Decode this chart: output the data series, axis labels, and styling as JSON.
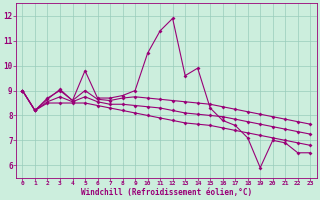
{
  "xlabel": "Windchill (Refroidissement éolien,°C)",
  "bg_color": "#cceedd",
  "line_color": "#990077",
  "grid_color": "#99ccbb",
  "xlim": [
    -0.5,
    23.5
  ],
  "ylim": [
    5.5,
    12.5
  ],
  "xticks": [
    0,
    1,
    2,
    3,
    4,
    5,
    6,
    7,
    8,
    9,
    10,
    11,
    12,
    13,
    14,
    15,
    16,
    17,
    18,
    19,
    20,
    21,
    22,
    23
  ],
  "yticks": [
    6,
    7,
    8,
    9,
    10,
    11,
    12
  ],
  "series1": [
    [
      0,
      9.0
    ],
    [
      1,
      8.2
    ],
    [
      2,
      8.7
    ],
    [
      3,
      9.0
    ],
    [
      4,
      8.6
    ],
    [
      5,
      9.8
    ],
    [
      6,
      8.7
    ],
    [
      7,
      8.7
    ],
    [
      8,
      8.8
    ],
    [
      9,
      9.0
    ],
    [
      10,
      10.5
    ],
    [
      11,
      11.4
    ],
    [
      12,
      11.9
    ],
    [
      13,
      9.6
    ],
    [
      14,
      9.9
    ],
    [
      15,
      8.3
    ],
    [
      16,
      7.8
    ],
    [
      17,
      7.6
    ],
    [
      18,
      7.1
    ],
    [
      19,
      5.9
    ],
    [
      20,
      7.0
    ],
    [
      21,
      6.9
    ],
    [
      22,
      6.5
    ],
    [
      23,
      6.5
    ]
  ],
  "series2": [
    [
      0,
      9.0
    ],
    [
      1,
      8.2
    ],
    [
      2,
      8.65
    ],
    [
      3,
      9.05
    ],
    [
      4,
      8.6
    ],
    [
      5,
      9.0
    ],
    [
      6,
      8.65
    ],
    [
      7,
      8.6
    ],
    [
      8,
      8.7
    ],
    [
      9,
      8.75
    ],
    [
      10,
      8.7
    ],
    [
      11,
      8.65
    ],
    [
      12,
      8.6
    ],
    [
      13,
      8.55
    ],
    [
      14,
      8.5
    ],
    [
      15,
      8.45
    ],
    [
      16,
      8.35
    ],
    [
      17,
      8.25
    ],
    [
      18,
      8.15
    ],
    [
      19,
      8.05
    ],
    [
      20,
      7.95
    ],
    [
      21,
      7.85
    ],
    [
      22,
      7.75
    ],
    [
      23,
      7.65
    ]
  ],
  "series3": [
    [
      0,
      9.0
    ],
    [
      1,
      8.2
    ],
    [
      2,
      8.5
    ],
    [
      3,
      8.5
    ],
    [
      4,
      8.5
    ],
    [
      5,
      8.5
    ],
    [
      6,
      8.4
    ],
    [
      7,
      8.3
    ],
    [
      8,
      8.2
    ],
    [
      9,
      8.1
    ],
    [
      10,
      8.0
    ],
    [
      11,
      7.9
    ],
    [
      12,
      7.8
    ],
    [
      13,
      7.7
    ],
    [
      14,
      7.65
    ],
    [
      15,
      7.6
    ],
    [
      16,
      7.5
    ],
    [
      17,
      7.4
    ],
    [
      18,
      7.3
    ],
    [
      19,
      7.2
    ],
    [
      20,
      7.1
    ],
    [
      21,
      7.0
    ],
    [
      22,
      6.9
    ],
    [
      23,
      6.8
    ]
  ],
  "series4": [
    [
      0,
      9.0
    ],
    [
      1,
      8.2
    ],
    [
      2,
      8.55
    ],
    [
      3,
      8.75
    ],
    [
      4,
      8.55
    ],
    [
      5,
      8.75
    ],
    [
      6,
      8.55
    ],
    [
      7,
      8.45
    ],
    [
      8,
      8.45
    ],
    [
      9,
      8.4
    ],
    [
      10,
      8.35
    ],
    [
      11,
      8.3
    ],
    [
      12,
      8.2
    ],
    [
      13,
      8.1
    ],
    [
      14,
      8.05
    ],
    [
      15,
      8.0
    ],
    [
      16,
      7.95
    ],
    [
      17,
      7.85
    ],
    [
      18,
      7.75
    ],
    [
      19,
      7.65
    ],
    [
      20,
      7.55
    ],
    [
      21,
      7.45
    ],
    [
      22,
      7.35
    ],
    [
      23,
      7.25
    ]
  ]
}
